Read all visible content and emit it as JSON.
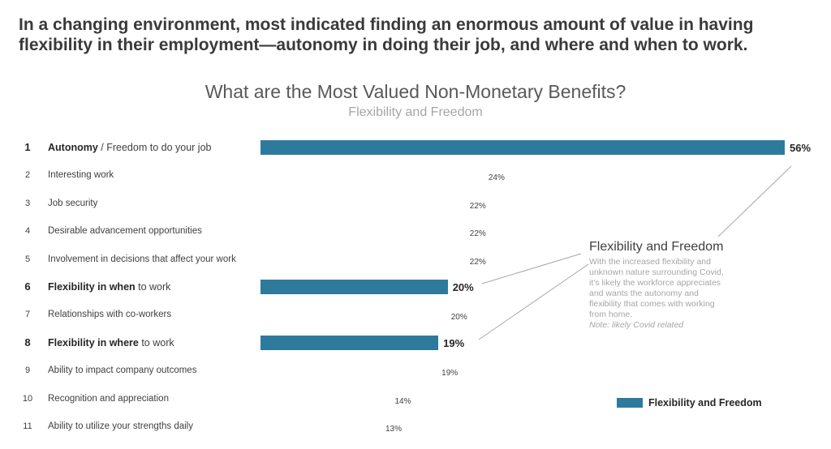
{
  "headline": "In a changing environment, most indicated finding an enormous amount of value in having flexibility in their employment—autonomy in doing their job, and where and when to work.",
  "colors": {
    "accent": "#2e7a9c",
    "text": "#404040",
    "muted": "#a6a6a6"
  },
  "chart_data": {
    "type": "bar",
    "orientation": "horizontal",
    "title": "What are the Most Valued Non-Monetary Benefits?",
    "subtitle": "Flexibility and Freedom",
    "xlim": [
      0,
      56
    ],
    "legend": {
      "label": "Flexibility and Freedom",
      "position": "bottom-right"
    },
    "rows": [
      {
        "rank": "1",
        "label_bold": "Autonomy",
        "label_rest": " / Freedom to do your job",
        "value": 56,
        "value_label": "56%",
        "highlight": true
      },
      {
        "rank": "2",
        "label_bold": "",
        "label_rest": "Interesting work",
        "value": 24,
        "value_label": "24%",
        "highlight": false
      },
      {
        "rank": "3",
        "label_bold": "",
        "label_rest": "Job security",
        "value": 22,
        "value_label": "22%",
        "highlight": false
      },
      {
        "rank": "4",
        "label_bold": "",
        "label_rest": "Desirable advancement opportunities",
        "value": 22,
        "value_label": "22%",
        "highlight": false
      },
      {
        "rank": "5",
        "label_bold": "",
        "label_rest": "Involvement in decisions that affect your work",
        "value": 22,
        "value_label": "22%",
        "highlight": false
      },
      {
        "rank": "6",
        "label_bold": "Flexibility in when",
        "label_rest": " to work",
        "value": 20,
        "value_label": "20%",
        "highlight": true
      },
      {
        "rank": "7",
        "label_bold": "",
        "label_rest": "Relationships with co-workers",
        "value": 20,
        "value_label": "20%",
        "highlight": false
      },
      {
        "rank": "8",
        "label_bold": "Flexibility in where",
        "label_rest": " to work",
        "value": 19,
        "value_label": "19%",
        "highlight": true
      },
      {
        "rank": "9",
        "label_bold": "",
        "label_rest": "Ability to impact company outcomes",
        "value": 19,
        "value_label": "19%",
        "highlight": false
      },
      {
        "rank": "10",
        "label_bold": "",
        "label_rest": "Recognition and appreciation",
        "value": 14,
        "value_label": "14%",
        "highlight": false
      },
      {
        "rank": "11",
        "label_bold": "",
        "label_rest": "Ability to utilize your strengths daily",
        "value": 13,
        "value_label": "13%",
        "highlight": false
      }
    ],
    "annotation": {
      "title": "Flexibility and Freedom",
      "lines": [
        "With the increased flexibility and",
        "unknown nature surrounding Covid,",
        "it’s likely the workforce appreciates",
        "and wants the autonomy and",
        "flexibility that comes with working",
        "from home."
      ],
      "note": "Note:  likely Covid related"
    }
  }
}
